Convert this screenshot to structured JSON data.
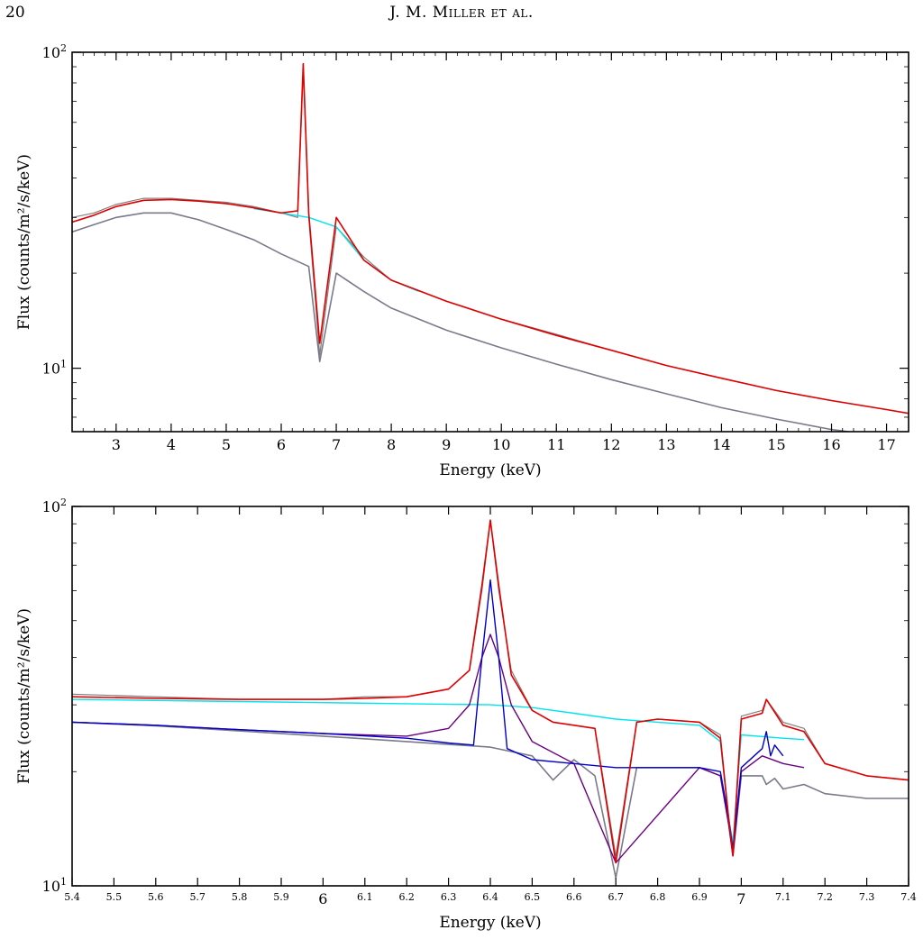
{
  "page": {
    "number": "20",
    "running_head": "J. M. Miller et al."
  },
  "colors": {
    "data": "#7f7f7f",
    "model": "#e00000",
    "continuum": "#00e5ee",
    "line_blue": "#0000c8",
    "line_purple": "#6a0080",
    "absorbed": "#7a7a8a"
  },
  "chart_data": [
    {
      "type": "line",
      "xlabel": "Energy (keV)",
      "ylabel": "Flux (counts/m²/s/keV)",
      "yscale": "log",
      "xlim": [
        2.2,
        17.4
      ],
      "ylim": [
        6.3,
        100
      ],
      "x_ticks": [
        3,
        4,
        5,
        6,
        7,
        8,
        9,
        10,
        11,
        12,
        13,
        14,
        15,
        16,
        17
      ],
      "x_tick_labels": [
        "3",
        "4",
        "5",
        "6",
        "7",
        "8",
        "9",
        "10",
        "11",
        "12",
        "13",
        "14",
        "15",
        "16",
        "17"
      ],
      "y_ticks": [
        10,
        100
      ],
      "y_tick_labels": [
        "10¹",
        "10²"
      ],
      "grid": false,
      "series": [
        {
          "role": "data",
          "x": [
            2.2,
            2.6,
            3.0,
            3.5,
            4.0,
            4.5,
            5.0,
            5.5,
            6.0,
            6.3,
            6.4,
            6.5,
            6.7,
            7.0,
            7.5,
            8.0,
            9.0,
            10.0,
            11.0,
            12.0,
            13.0,
            14.0,
            15.0,
            16.0,
            17.0,
            17.4
          ],
          "y": [
            30,
            31,
            33,
            34.5,
            34.5,
            34,
            33.5,
            32.5,
            31,
            30,
            90,
            30,
            11,
            28,
            22.5,
            19,
            16.3,
            14.3,
            12.8,
            11.4,
            10.2,
            9.3,
            8.5,
            7.9,
            7.4,
            7.2
          ]
        },
        {
          "role": "model",
          "x": [
            2.2,
            2.6,
            3.0,
            3.5,
            4.0,
            4.5,
            5.0,
            5.5,
            6.0,
            6.3,
            6.4,
            6.5,
            6.7,
            7.0,
            7.5,
            8.0,
            9.0,
            10.0,
            11.0,
            12.0,
            13.0,
            14.0,
            15.0,
            16.0,
            17.0,
            17.4
          ],
          "y": [
            29,
            30.5,
            32.5,
            34,
            34.2,
            33.8,
            33.2,
            32.2,
            31,
            31.5,
            92,
            31,
            12,
            30,
            22,
            19,
            16.3,
            14.3,
            12.7,
            11.4,
            10.2,
            9.3,
            8.5,
            7.9,
            7.4,
            7.2
          ]
        },
        {
          "role": "continuum",
          "x": [
            5.5,
            6.0,
            6.5,
            7.0,
            7.5,
            8.0,
            8.5
          ],
          "y": [
            32,
            31,
            30,
            28,
            22,
            19,
            17.5
          ]
        },
        {
          "role": "absorbed",
          "x": [
            2.2,
            2.6,
            3.0,
            3.5,
            4.0,
            4.5,
            5.0,
            5.5,
            6.0,
            6.5,
            6.7,
            7.0,
            7.5,
            8.0,
            9.0,
            10.0,
            11.0,
            12.0,
            13.0,
            14.0,
            15.0,
            16.0,
            16.6
          ],
          "y": [
            27,
            28.5,
            30,
            31,
            31,
            29.5,
            27.5,
            25.5,
            23,
            21,
            10.5,
            20,
            17.5,
            15.5,
            13.2,
            11.6,
            10.3,
            9.2,
            8.3,
            7.5,
            6.9,
            6.4,
            6.2
          ]
        }
      ]
    },
    {
      "type": "line",
      "xlabel": "Energy (keV)",
      "ylabel": "Flux (counts/m²/s/keV)",
      "yscale": "log",
      "xlim": [
        5.4,
        7.4
      ],
      "ylim": [
        10,
        100
      ],
      "x_ticks": [
        5.4,
        5.5,
        5.6,
        5.7,
        5.8,
        5.9,
        6.0,
        6.1,
        6.2,
        6.3,
        6.4,
        6.5,
        6.6,
        6.7,
        6.8,
        6.9,
        7.0,
        7.1,
        7.2,
        7.3,
        7.4
      ],
      "x_tick_labels": [
        "5.4",
        "5.5",
        "5.6",
        "5.7",
        "5.8",
        "5.9",
        "6",
        "6.1",
        "6.2",
        "6.3",
        "6.4",
        "6.5",
        "6.6",
        "6.7",
        "6.8",
        "6.9",
        "7",
        "7.1",
        "7.2",
        "7.3",
        "7.4"
      ],
      "x_major_ticks": [
        "6",
        "7"
      ],
      "y_ticks": [
        10,
        100
      ],
      "y_tick_labels": [
        "10¹",
        "10²"
      ],
      "grid": false,
      "series": [
        {
          "role": "data",
          "x": [
            5.4,
            5.6,
            5.8,
            6.0,
            6.1,
            6.2,
            6.3,
            6.35,
            6.38,
            6.4,
            6.42,
            6.45,
            6.5,
            6.55,
            6.6,
            6.65,
            6.7,
            6.75,
            6.8,
            6.9,
            6.95,
            6.97,
            6.98,
            7.0,
            7.05,
            7.06,
            7.1,
            7.15,
            7.2,
            7.3,
            7.4
          ],
          "y": [
            32,
            31.5,
            31,
            31,
            31.5,
            31.5,
            33,
            37,
            60,
            92,
            60,
            37,
            29,
            27,
            26.5,
            26,
            12,
            27,
            27.5,
            27,
            25,
            15,
            12.5,
            28,
            29,
            31,
            27,
            26,
            21,
            19.5,
            19
          ]
        },
        {
          "role": "model",
          "x": [
            5.4,
            5.6,
            5.8,
            6.0,
            6.1,
            6.2,
            6.3,
            6.35,
            6.38,
            6.4,
            6.42,
            6.45,
            6.5,
            6.55,
            6.6,
            6.65,
            6.7,
            6.75,
            6.8,
            6.9,
            6.95,
            6.97,
            6.98,
            7.0,
            7.05,
            7.06,
            7.1,
            7.15,
            7.2,
            7.3,
            7.4
          ],
          "y": [
            31.5,
            31.2,
            31,
            31,
            31.2,
            31.5,
            33,
            37,
            62,
            92,
            62,
            36,
            29,
            27,
            26.5,
            26,
            11.5,
            27,
            27.5,
            27,
            24.5,
            15,
            12,
            27.5,
            28.5,
            31,
            26.5,
            25.5,
            21,
            19.5,
            19
          ]
        },
        {
          "role": "continuum",
          "x": [
            5.4,
            5.6,
            5.8,
            6.0,
            6.2,
            6.4,
            6.5,
            6.6,
            6.7,
            6.8,
            6.9,
            6.95,
            6.97,
            6.98,
            7.0,
            7.1,
            7.15
          ],
          "y": [
            31,
            30.8,
            30.6,
            30.4,
            30.2,
            30,
            29.5,
            28.5,
            27.5,
            27,
            26.5,
            24,
            15,
            13,
            25,
            24.5,
            24.3
          ]
        },
        {
          "role": "line_blue",
          "x": [
            5.4,
            5.6,
            5.8,
            6.0,
            6.2,
            6.3,
            6.36,
            6.38,
            6.4,
            6.42,
            6.44,
            6.5,
            6.7,
            6.9,
            6.95,
            6.97,
            6.98,
            7.0,
            7.05,
            7.06,
            7.07,
            7.08,
            7.1
          ],
          "y": [
            27,
            26.5,
            25.8,
            25.2,
            24.5,
            23.8,
            23.5,
            40,
            64,
            40,
            23,
            21.5,
            20.5,
            20.5,
            20,
            15,
            12.5,
            20.5,
            23,
            25.5,
            22,
            23.5,
            22
          ]
        },
        {
          "role": "line_purple",
          "x": [
            5.4,
            5.6,
            5.8,
            6.0,
            6.2,
            6.3,
            6.35,
            6.38,
            6.4,
            6.42,
            6.45,
            6.5,
            6.6,
            6.7,
            6.9,
            6.95,
            6.97,
            6.98,
            7.0,
            7.05,
            7.1,
            7.15
          ],
          "y": [
            27,
            26.5,
            25.8,
            25.2,
            24.8,
            26,
            30,
            40,
            46,
            40,
            30,
            24,
            21,
            11.5,
            20.5,
            19.5,
            14.5,
            12,
            20,
            22,
            21,
            20.5
          ]
        },
        {
          "role": "absorbed",
          "x": [
            5.4,
            5.6,
            5.8,
            6.0,
            6.2,
            6.4,
            6.5,
            6.55,
            6.6,
            6.65,
            6.7,
            6.75,
            6.8,
            6.9,
            6.95,
            6.97,
            6.98,
            7.0,
            7.05,
            7.06,
            7.08,
            7.1,
            7.15,
            7.2,
            7.3,
            7.4
          ],
          "y": [
            27,
            26.4,
            25.6,
            24.8,
            24,
            23.2,
            22,
            19,
            21.5,
            19.5,
            10.5,
            20.5,
            20.5,
            20.5,
            19.5,
            14.5,
            12,
            19.5,
            19.5,
            18.5,
            19.2,
            18,
            18.5,
            17.5,
            17,
            17
          ]
        }
      ]
    }
  ]
}
